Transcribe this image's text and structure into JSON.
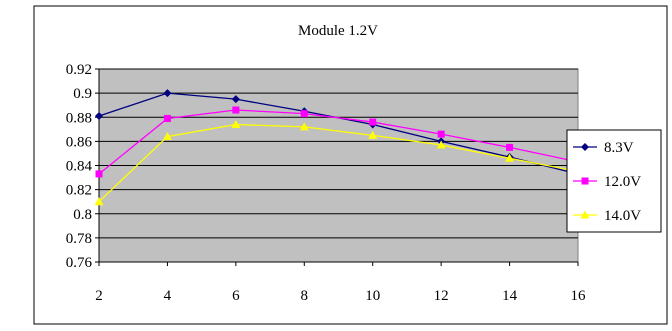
{
  "chart_data": {
    "type": "line",
    "title": "Module 1.2V",
    "xlabel": "",
    "ylabel": "",
    "x": [
      2,
      4,
      6,
      8,
      10,
      12,
      14,
      16
    ],
    "x_ticks": [
      "2",
      "4",
      "6",
      "8",
      "10",
      "12",
      "14",
      "16"
    ],
    "ylim": [
      0.76,
      0.92
    ],
    "y_ticks": [
      "0.92",
      "0.9",
      "0.88",
      "0.86",
      "0.84",
      "0.82",
      "0.8",
      "0.78",
      "0.76"
    ],
    "grid": "horizontal",
    "plot_background": "#c0c0c0",
    "legend_position": "right",
    "series": [
      {
        "name": "8.3V",
        "color": "#000080",
        "marker": "diamond",
        "values": [
          0.881,
          0.9,
          0.895,
          0.885,
          0.874,
          0.86,
          0.847,
          0.833
        ]
      },
      {
        "name": "12.0V",
        "color": "#ff00ff",
        "marker": "square",
        "values": [
          0.833,
          0.879,
          0.886,
          0.883,
          0.876,
          0.866,
          0.855,
          0.843
        ]
      },
      {
        "name": "14.0V",
        "color": "#ffff00",
        "marker": "triangle",
        "values": [
          0.81,
          0.864,
          0.874,
          0.872,
          0.865,
          0.857,
          0.846,
          0.835
        ]
      }
    ]
  }
}
